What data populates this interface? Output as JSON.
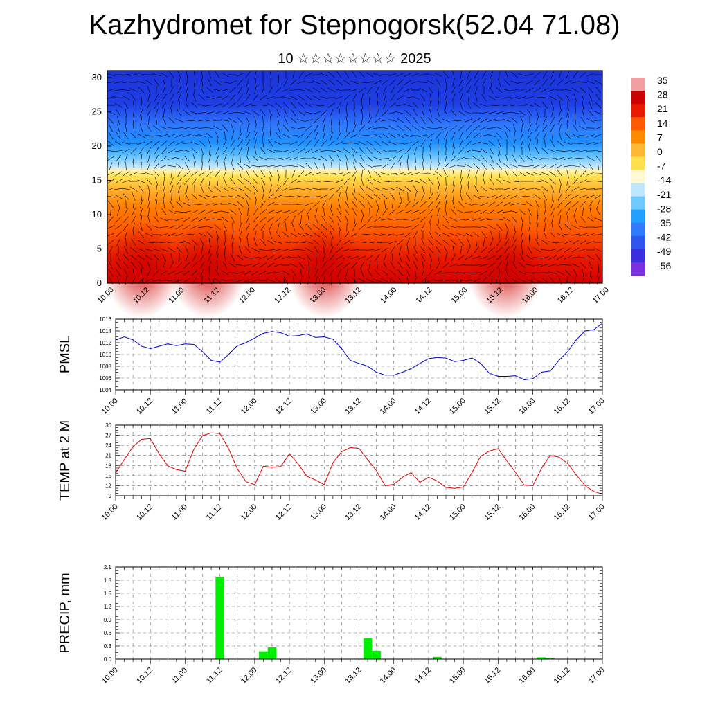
{
  "header": {
    "title": "Kazhydromet for Stepnogorsk(52.04 71.08)",
    "subtitle": "10 ☆☆☆☆☆☆☆☆ 2025"
  },
  "chart_data": [
    {
      "type": "heatmap",
      "xticks": [
        "10.00",
        "10.12",
        "11.00",
        "11.12",
        "12.00",
        "12.12",
        "13.00",
        "13.12",
        "14.00",
        "14.12",
        "15.00",
        "15.12",
        "16.00",
        "16.12",
        "17.00"
      ],
      "y_ticks": [
        0,
        5,
        10,
        15,
        20,
        25,
        30
      ],
      "ylim": [
        0,
        31
      ],
      "colorbar_labels": [
        "35",
        "28",
        "21",
        "14",
        "7",
        "0",
        "-7",
        "-14",
        "-21",
        "-28",
        "-35",
        "-42",
        "-49",
        "-56"
      ],
      "colors": {
        "hot": "#d40000",
        "warm": "#ff7f00",
        "mild": "#ffe14d",
        "cool": "#bfe6ff",
        "cold": "#1f8fff",
        "frozen": "#1f3fe6",
        "wind_barbs": "#000000"
      }
    },
    {
      "type": "line",
      "ylabel": "PMSL",
      "ylim": [
        1004,
        1016
      ],
      "y_ticks": [
        1004,
        1006,
        1008,
        1010,
        1012,
        1014,
        1016
      ],
      "xticks": [
        "10.00",
        "10.12",
        "11.00",
        "11.12",
        "12.00",
        "12.12",
        "13.00",
        "13.12",
        "14.00",
        "14.12",
        "15.00",
        "15.12",
        "16.00",
        "16.12",
        "17.00"
      ],
      "x": [
        0,
        3,
        6,
        9,
        12,
        15,
        18,
        21,
        24,
        27,
        30,
        33,
        36,
        39,
        42,
        45,
        48,
        51,
        54,
        57,
        60,
        63,
        66,
        69,
        72,
        75,
        78,
        81,
        84,
        87,
        90,
        93,
        96,
        99,
        102,
        105,
        108,
        111,
        114,
        117,
        120,
        123,
        126,
        129,
        132,
        135,
        138,
        141,
        144,
        147,
        150,
        153,
        156,
        159,
        162,
        165,
        168
      ],
      "series": [
        {
          "color": "#0000cc",
          "values": [
            1012.5,
            1013.0,
            1012.5,
            1011.4,
            1011.0,
            1011.4,
            1011.8,
            1011.5,
            1011.8,
            1011.7,
            1010.5,
            1009.0,
            1008.7,
            1010.0,
            1011.5,
            1012.0,
            1012.8,
            1013.6,
            1013.9,
            1013.7,
            1013.1,
            1013.2,
            1013.5,
            1012.9,
            1013.0,
            1012.6,
            1011.0,
            1009.0,
            1008.5,
            1008.0,
            1007.0,
            1006.5,
            1006.5,
            1007.0,
            1007.6,
            1008.5,
            1009.3,
            1009.5,
            1009.4,
            1008.8,
            1009.0,
            1009.4,
            1008.5,
            1006.8,
            1006.3,
            1006.3,
            1006.4,
            1005.7,
            1005.9,
            1007.0,
            1007.2,
            1009.0,
            1010.5,
            1012.5,
            1014.0,
            1014.2,
            1015.3
          ]
        }
      ]
    },
    {
      "type": "line",
      "ylabel": "TEMP at 2 M",
      "ylim": [
        9,
        30
      ],
      "y_ticks": [
        9,
        12,
        15,
        18,
        21,
        24,
        27,
        30
      ],
      "xticks": [
        "10.00",
        "10.12",
        "11.00",
        "11.12",
        "12.00",
        "12.12",
        "13.00",
        "13.12",
        "14.00",
        "14.12",
        "15.00",
        "15.12",
        "16.00",
        "16.12",
        "17.00"
      ],
      "x": [
        0,
        3,
        6,
        9,
        12,
        15,
        18,
        21,
        24,
        27,
        30,
        33,
        36,
        39,
        42,
        45,
        48,
        51,
        54,
        57,
        60,
        63,
        66,
        69,
        72,
        75,
        78,
        81,
        84,
        87,
        90,
        93,
        96,
        99,
        102,
        105,
        108,
        111,
        114,
        117,
        120,
        123,
        126,
        129,
        132,
        135,
        138,
        141,
        144,
        147,
        150,
        153,
        156,
        159,
        162,
        165,
        168
      ],
      "series": [
        {
          "color": "#dd0000",
          "values": [
            15.7,
            19.8,
            23.6,
            25.8,
            26.0,
            21.5,
            17.9,
            16.8,
            16.3,
            22.8,
            26.9,
            27.7,
            27.5,
            23.0,
            17.0,
            13.2,
            12.3,
            17.8,
            17.5,
            17.7,
            21.5,
            18.5,
            14.8,
            13.7,
            12.3,
            18.8,
            22.1,
            23.3,
            23.1,
            19.7,
            16.5,
            12.0,
            12.4,
            14.5,
            15.9,
            13.0,
            14.5,
            13.4,
            11.5,
            11.2,
            11.6,
            15.9,
            20.8,
            22.3,
            23.0,
            19.4,
            16.0,
            12.2,
            12.0,
            17.2,
            21.0,
            20.5,
            18.6,
            15.2,
            12.0,
            10.3,
            9.5
          ]
        }
      ]
    },
    {
      "type": "bar",
      "ylabel": "PRECIP, mm",
      "ylim": [
        0,
        2.1
      ],
      "y_ticks": [
        "0.0",
        "0.3",
        "0.6",
        "0.9",
        "1.2",
        "1.5",
        "1.8",
        "2.1"
      ],
      "xticks": [
        "10.00",
        "10.12",
        "11.00",
        "11.12",
        "12.00",
        "12.12",
        "13.00",
        "13.12",
        "14.00",
        "14.12",
        "15.00",
        "15.12",
        "16.00",
        "16.12",
        "17.00"
      ],
      "x": [
        36,
        51,
        54,
        84,
        87,
        90,
        111,
        147,
        150
      ],
      "series": [
        {
          "color": "#00ee00",
          "values": [
            1.88,
            0.18,
            0.27,
            0.01,
            0.48,
            0.19,
            0.05,
            0.04,
            0.02
          ]
        }
      ]
    }
  ]
}
